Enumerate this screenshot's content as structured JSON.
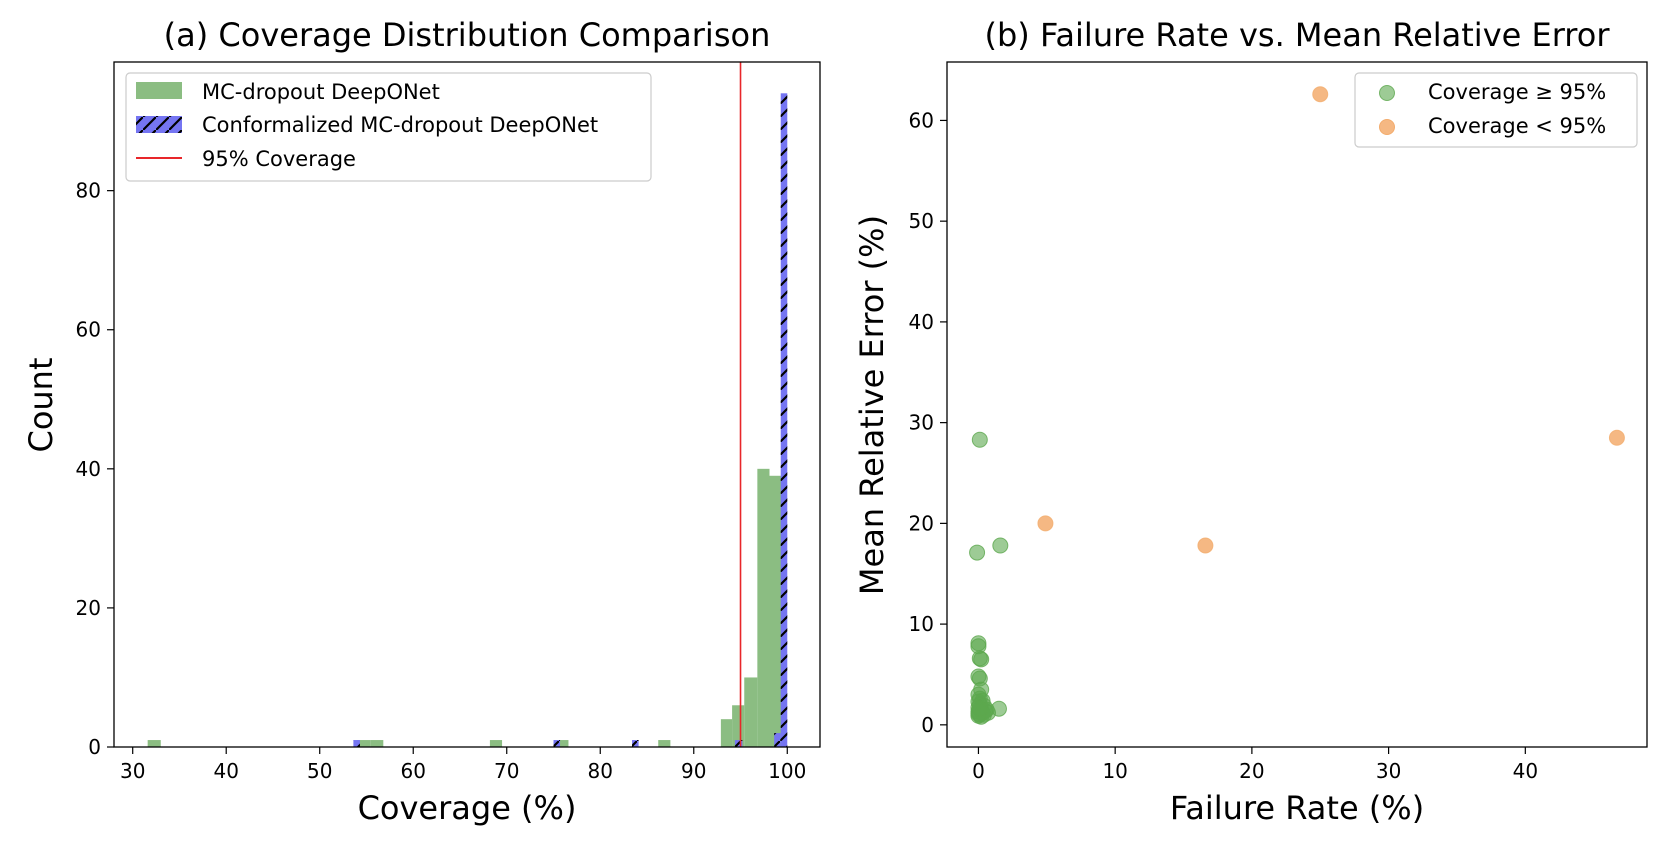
{
  "chart_data": [
    {
      "type": "bar",
      "subtype": "histogram",
      "title": "(a) Coverage Distribution Comparison",
      "xlabel": "Coverage (%)",
      "ylabel": "Count",
      "xlim": [
        28,
        103.5
      ],
      "ylim": [
        0,
        98.5
      ],
      "xticks": [
        30,
        40,
        50,
        60,
        70,
        80,
        90,
        100
      ],
      "yticks": [
        0,
        20,
        40,
        60,
        80
      ],
      "grid": false,
      "legend_position": "top-left",
      "reference_line": {
        "name": "95% Coverage",
        "x": 95,
        "color": "#e8262a"
      },
      "series": [
        {
          "name": "MC-dropout DeepONet",
          "color": "#8bbd82",
          "hatch": false,
          "bins": [
            {
              "x0": 31.6,
              "x1": 33.0,
              "count": 1
            },
            {
              "x0": 54.0,
              "x1": 55.4,
              "count": 1
            },
            {
              "x0": 55.4,
              "x1": 56.8,
              "count": 1
            },
            {
              "x0": 68.2,
              "x1": 69.5,
              "count": 1
            },
            {
              "x0": 75.4,
              "x1": 76.6,
              "count": 1
            },
            {
              "x0": 86.2,
              "x1": 87.5,
              "count": 1
            },
            {
              "x0": 92.9,
              "x1": 94.1,
              "count": 4
            },
            {
              "x0": 94.1,
              "x1": 95.4,
              "count": 6
            },
            {
              "x0": 95.4,
              "x1": 96.8,
              "count": 10
            },
            {
              "x0": 96.8,
              "x1": 98.1,
              "count": 40
            },
            {
              "x0": 98.1,
              "x1": 99.5,
              "count": 39
            }
          ]
        },
        {
          "name": "Conformalized MC-dropout DeepONet",
          "color": "#7575f2",
          "hatch": true,
          "bins": [
            {
              "x0": 53.6,
              "x1": 54.3,
              "count": 1
            },
            {
              "x0": 75.0,
              "x1": 75.7,
              "count": 1
            },
            {
              "x0": 83.4,
              "x1": 84.1,
              "count": 1
            },
            {
              "x0": 94.4,
              "x1": 95.2,
              "count": 1
            },
            {
              "x0": 98.6,
              "x1": 99.3,
              "count": 2
            },
            {
              "x0": 99.3,
              "x1": 100.0,
              "count": 94
            }
          ]
        }
      ]
    },
    {
      "type": "scatter",
      "title": "(b) Failure Rate vs. Mean Relative Error",
      "xlabel": "Failure Rate (%)",
      "ylabel": "Mean Relative Error (%)",
      "xlim": [
        -2.3,
        48.9
      ],
      "ylim": [
        -2.2,
        65.8
      ],
      "xticks": [
        0,
        10,
        20,
        30,
        40
      ],
      "yticks": [
        0,
        10,
        20,
        30,
        40,
        50,
        60
      ],
      "grid": false,
      "legend_position": "top-right",
      "series": [
        {
          "name": "Coverage ≥ 95%",
          "color": "#5ca84e",
          "points": [
            [
              0.1,
              28.3
            ],
            [
              -0.1,
              17.1
            ],
            [
              1.6,
              17.8
            ],
            [
              1.5,
              1.6
            ],
            [
              0.0,
              8.1
            ],
            [
              0.0,
              7.8
            ],
            [
              0.1,
              6.6
            ],
            [
              0.2,
              6.5
            ],
            [
              0.0,
              4.8
            ],
            [
              0.1,
              4.6
            ],
            [
              0.2,
              3.5
            ],
            [
              0.0,
              3.0
            ],
            [
              0.1,
              2.6
            ],
            [
              0.0,
              2.3
            ],
            [
              0.3,
              2.4
            ],
            [
              0.1,
              2.0
            ],
            [
              0.4,
              1.9
            ],
            [
              0.0,
              1.7
            ],
            [
              0.2,
              1.5
            ],
            [
              0.5,
              1.4
            ],
            [
              0.0,
              1.3
            ],
            [
              0.3,
              1.2
            ],
            [
              0.6,
              1.5
            ],
            [
              0.1,
              1.0
            ],
            [
              0.0,
              0.9
            ],
            [
              0.2,
              0.8
            ],
            [
              0.7,
              1.2
            ],
            [
              0.4,
              1.0
            ],
            [
              0.0,
              1.1
            ],
            [
              0.1,
              1.6
            ]
          ]
        },
        {
          "name": "Coverage < 95%",
          "color": "#f3ac6d",
          "points": [
            [
              25.0,
              62.6
            ],
            [
              4.9,
              20.0
            ],
            [
              16.6,
              17.8
            ],
            [
              46.7,
              28.5
            ]
          ]
        }
      ]
    }
  ]
}
